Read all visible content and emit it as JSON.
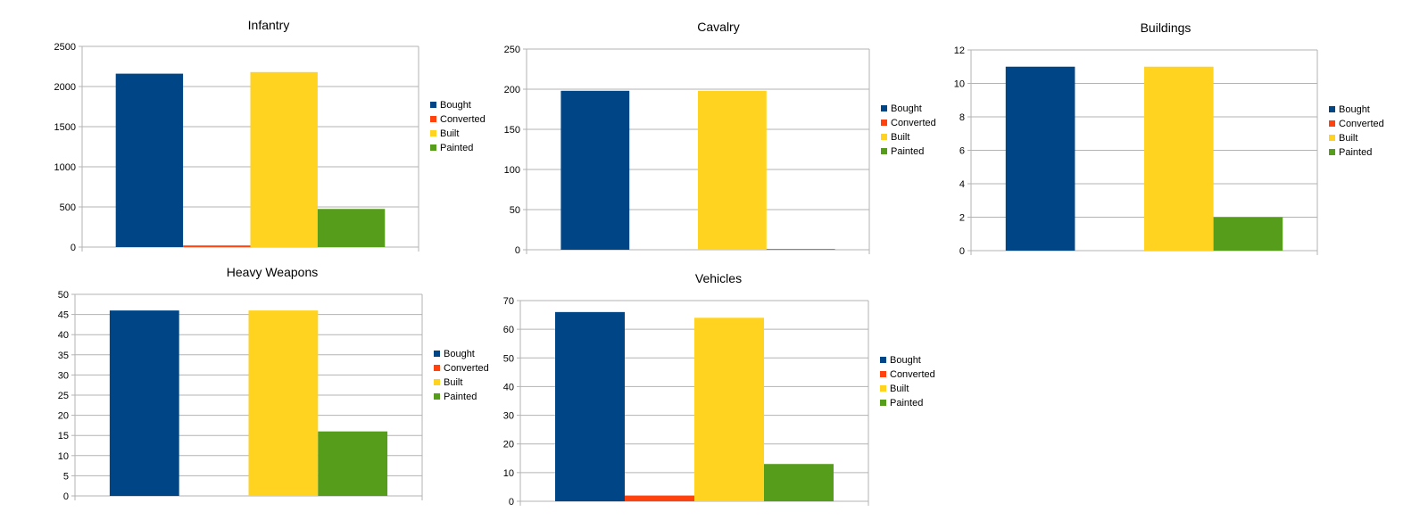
{
  "colors": {
    "bought": "#004586",
    "converted": "#ff420e",
    "built": "#ffd320",
    "painted": "#579d1c",
    "grid": "#b3b3b3",
    "axis": "#b3b3b3"
  },
  "chart_data": [
    {
      "type": "bar",
      "title": "Infantry",
      "categories": [
        "Bought",
        "Converted",
        "Built",
        "Painted"
      ],
      "values": [
        2160,
        20,
        2180,
        475
      ],
      "ylim": [
        0,
        2500
      ],
      "yticks": [
        0,
        500,
        1000,
        1500,
        2000,
        2500
      ],
      "grid": true,
      "legend_position": "right"
    },
    {
      "type": "bar",
      "title": "Cavalry",
      "categories": [
        "Bought",
        "Converted",
        "Built",
        "Painted"
      ],
      "values": [
        198,
        0,
        198,
        1
      ],
      "ylim": [
        0,
        250
      ],
      "yticks": [
        0,
        50,
        100,
        150,
        200,
        250
      ],
      "grid": true,
      "legend_position": "right"
    },
    {
      "type": "bar",
      "title": "Buildings",
      "categories": [
        "Bought",
        "Converted",
        "Built",
        "Painted"
      ],
      "values": [
        11,
        0,
        11,
        2
      ],
      "ylim": [
        0,
        12
      ],
      "yticks": [
        0,
        2,
        4,
        6,
        8,
        10,
        12
      ],
      "grid": true,
      "legend_position": "right"
    },
    {
      "type": "bar",
      "title": "Heavy Weapons",
      "categories": [
        "Bought",
        "Converted",
        "Built",
        "Painted"
      ],
      "values": [
        46,
        0,
        46,
        16
      ],
      "ylim": [
        0,
        50
      ],
      "yticks": [
        0,
        5,
        10,
        15,
        20,
        25,
        30,
        35,
        40,
        45,
        50
      ],
      "grid": true,
      "legend_position": "right"
    },
    {
      "type": "bar",
      "title": "Vehicles",
      "categories": [
        "Bought",
        "Converted",
        "Built",
        "Painted"
      ],
      "values": [
        66,
        2,
        64,
        13
      ],
      "ylim": [
        0,
        70
      ],
      "yticks": [
        0,
        10,
        20,
        30,
        40,
        50,
        60,
        70
      ],
      "grid": true,
      "legend_position": "right"
    }
  ]
}
